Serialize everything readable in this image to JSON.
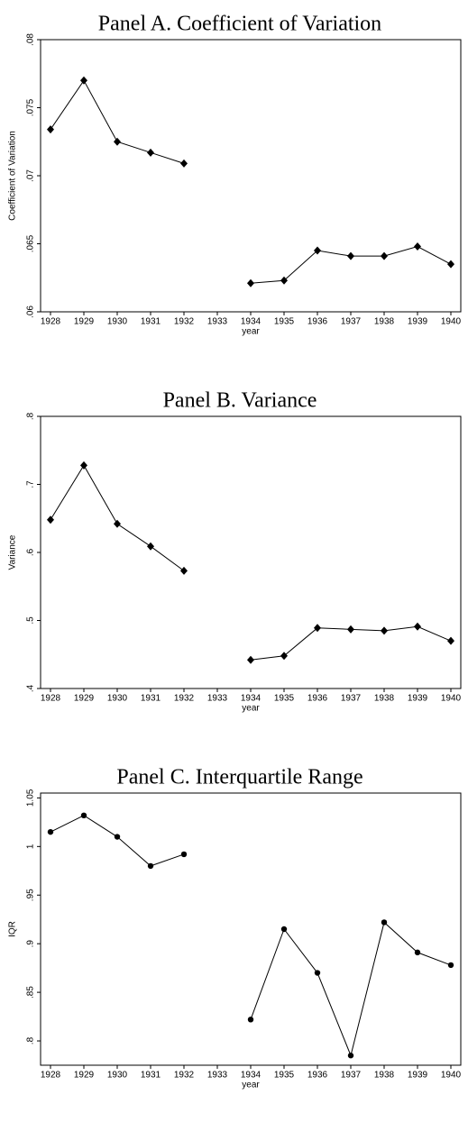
{
  "chart_data": [
    {
      "type": "line",
      "title": "Panel A. Coefficient of Variation",
      "x_label": "year",
      "y_label": "Coefficient of Variation",
      "marker": "diamond",
      "color": "#000000",
      "x": [
        1928,
        1929,
        1930,
        1931,
        1932,
        1933,
        1934,
        1935,
        1936,
        1937,
        1938,
        1939,
        1940
      ],
      "values": [
        0.0734,
        0.077,
        0.0725,
        0.0717,
        0.0709,
        null,
        0.0621,
        0.0623,
        0.0645,
        0.0641,
        0.0641,
        0.0648,
        0.0635
      ],
      "xlim": [
        1928,
        1940
      ],
      "xticks": [
        1928,
        1929,
        1930,
        1931,
        1932,
        1933,
        1934,
        1935,
        1936,
        1937,
        1938,
        1939,
        1940
      ],
      "ylim": [
        0.06,
        0.08
      ],
      "yticks": [
        {
          "value": 0.06,
          "label": ".06"
        },
        {
          "value": 0.065,
          "label": ".065"
        },
        {
          "value": 0.07,
          "label": ".07"
        },
        {
          "value": 0.075,
          "label": ".075"
        },
        {
          "value": 0.08,
          "label": ".08"
        }
      ]
    },
    {
      "type": "line",
      "title": "Panel B. Variance",
      "x_label": "year",
      "y_label": "Variance",
      "marker": "diamond",
      "color": "#000000",
      "x": [
        1928,
        1929,
        1930,
        1931,
        1932,
        1933,
        1934,
        1935,
        1936,
        1937,
        1938,
        1939,
        1940
      ],
      "values": [
        0.648,
        0.728,
        0.642,
        0.609,
        0.573,
        null,
        0.442,
        0.448,
        0.489,
        0.487,
        0.485,
        0.491,
        0.47
      ],
      "xlim": [
        1928,
        1940
      ],
      "xticks": [
        1928,
        1929,
        1930,
        1931,
        1932,
        1933,
        1934,
        1935,
        1936,
        1937,
        1938,
        1939,
        1940
      ],
      "ylim": [
        0.4,
        0.8
      ],
      "yticks": [
        {
          "value": 0.4,
          "label": ".4"
        },
        {
          "value": 0.5,
          "label": ".5"
        },
        {
          "value": 0.6,
          "label": ".6"
        },
        {
          "value": 0.7,
          "label": ".7"
        },
        {
          "value": 0.8,
          "label": ".8"
        }
      ]
    },
    {
      "type": "line",
      "title": "Panel C. Interquartile Range",
      "x_label": "year",
      "y_label": "IQR",
      "marker": "circle",
      "color": "#000000",
      "x": [
        1928,
        1929,
        1930,
        1931,
        1932,
        1933,
        1934,
        1935,
        1936,
        1937,
        1938,
        1939,
        1940
      ],
      "values": [
        1.015,
        1.032,
        1.01,
        0.98,
        0.992,
        null,
        0.822,
        0.915,
        0.87,
        0.785,
        0.922,
        0.891,
        0.878
      ],
      "xlim": [
        1928,
        1940
      ],
      "xticks": [
        1928,
        1929,
        1930,
        1931,
        1932,
        1933,
        1934,
        1935,
        1936,
        1937,
        1938,
        1939,
        1940
      ],
      "ylim": [
        0.775,
        1.055
      ],
      "yticks": [
        {
          "value": 0.8,
          "label": ".8"
        },
        {
          "value": 0.85,
          "label": ".85"
        },
        {
          "value": 0.9,
          "label": ".9"
        },
        {
          "value": 0.95,
          "label": ".95"
        },
        1,
        {
          "value": 1.05,
          "label": "1.05"
        }
      ]
    }
  ]
}
